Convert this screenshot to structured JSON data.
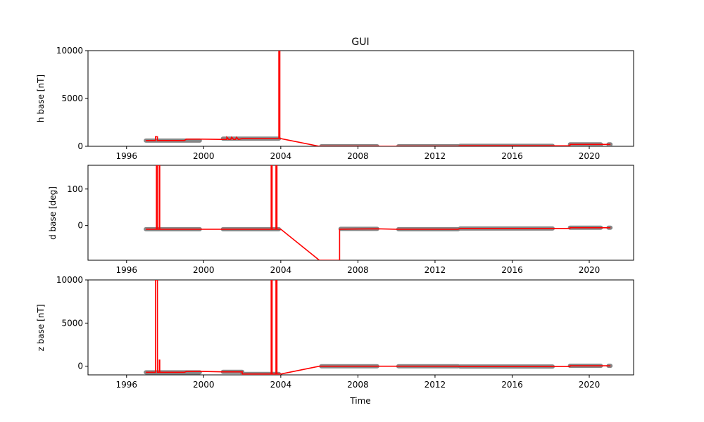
{
  "chart_data": {
    "type": "line",
    "title": "GUI",
    "xlabel": "Time",
    "x_ticks": [
      "1996",
      "2000",
      "2004",
      "2008",
      "2012",
      "2016",
      "2020"
    ],
    "colors": {
      "measurement_points": "#808080",
      "baseline_line": "#ff0000"
    },
    "grid": false,
    "legend": false,
    "panels": [
      {
        "ylabel": "h base [nT]",
        "ylim": [
          0,
          10000
        ],
        "y_ticks": [
          0,
          5000,
          10000
        ],
        "point_ranges": [
          [
            1997.0,
            1999.8,
            600
          ],
          [
            2001.0,
            2003.9,
            800
          ],
          [
            2006.1,
            2009.0,
            0
          ],
          [
            2010.1,
            2013.2,
            0
          ],
          [
            2013.3,
            2018.1,
            50
          ],
          [
            2019.0,
            2020.6,
            200
          ],
          [
            2021.0,
            2021.1,
            200
          ]
        ],
        "baseline": [
          [
            1997.0,
            600
          ],
          [
            1997.5,
            600
          ],
          [
            1997.5,
            1000
          ],
          [
            1997.6,
            1000
          ],
          [
            1997.6,
            600
          ],
          [
            1999.0,
            600
          ],
          [
            1999.1,
            750
          ],
          [
            1999.9,
            750
          ],
          [
            2000.9,
            720
          ],
          [
            2001.2,
            720
          ],
          [
            2001.2,
            950
          ],
          [
            2001.3,
            720
          ],
          [
            2001.4,
            720
          ],
          [
            2001.45,
            950
          ],
          [
            2001.55,
            720
          ],
          [
            2001.65,
            720
          ],
          [
            2001.7,
            950
          ],
          [
            2001.8,
            720
          ],
          [
            2002.0,
            800
          ],
          [
            2003.9,
            820
          ],
          [
            2003.9,
            10000
          ],
          [
            2003.95,
            10000
          ],
          [
            2003.95,
            800
          ],
          [
            2004.0,
            800
          ],
          [
            2006.0,
            0
          ],
          [
            2009.0,
            0
          ],
          [
            2010.0,
            0
          ],
          [
            2013.2,
            0
          ],
          [
            2013.3,
            50
          ],
          [
            2018.1,
            50
          ],
          [
            2019.0,
            50
          ],
          [
            2019.0,
            200
          ],
          [
            2020.6,
            200
          ],
          [
            2021.0,
            200
          ],
          [
            2021.1,
            200
          ]
        ]
      },
      {
        "ylabel": "d base [deg]",
        "ylim": [
          -95,
          165
        ],
        "y_ticks": [
          0,
          100
        ],
        "point_ranges": [
          [
            1997.0,
            1999.8,
            -10
          ],
          [
            2001.0,
            2003.9,
            -10
          ],
          [
            2007.1,
            2009.0,
            -9
          ],
          [
            2010.1,
            2013.2,
            -10
          ],
          [
            2013.3,
            2018.1,
            -8
          ],
          [
            2019.0,
            2020.6,
            -6
          ],
          [
            2021.0,
            2021.1,
            -6
          ]
        ],
        "baseline": [
          [
            1997.0,
            -10
          ],
          [
            1997.55,
            -10
          ],
          [
            1997.55,
            165
          ],
          [
            1997.6,
            165
          ],
          [
            1997.6,
            -10
          ],
          [
            1997.7,
            -10
          ],
          [
            1997.7,
            165
          ],
          [
            1997.72,
            165
          ],
          [
            1997.72,
            -10
          ],
          [
            1999.8,
            -10
          ],
          [
            2001.0,
            -10
          ],
          [
            2003.5,
            -10
          ],
          [
            2003.5,
            165
          ],
          [
            2003.55,
            165
          ],
          [
            2003.55,
            -10
          ],
          [
            2003.75,
            -10
          ],
          [
            2003.75,
            165
          ],
          [
            2003.8,
            165
          ],
          [
            2003.8,
            -10
          ],
          [
            2004.0,
            -10
          ],
          [
            2006.0,
            -95
          ],
          [
            2007.05,
            -95
          ],
          [
            2007.05,
            -10
          ],
          [
            2009.0,
            -9
          ],
          [
            2010.0,
            -10
          ],
          [
            2013.2,
            -10
          ],
          [
            2013.3,
            -8
          ],
          [
            2018.1,
            -8
          ],
          [
            2019.0,
            -8
          ],
          [
            2019.0,
            -6
          ],
          [
            2020.6,
            -6
          ],
          [
            2021.0,
            -6
          ],
          [
            2021.1,
            -6
          ]
        ]
      },
      {
        "ylabel": "z base [nT]",
        "ylim": [
          -1000,
          10000
        ],
        "y_ticks": [
          0,
          5000,
          10000
        ],
        "point_ranges": [
          [
            1997.0,
            1999.8,
            -700
          ],
          [
            2001.0,
            2002.0,
            -650
          ],
          [
            2002.0,
            2003.9,
            -900
          ],
          [
            2006.1,
            2009.0,
            0
          ],
          [
            2010.1,
            2013.2,
            0
          ],
          [
            2013.3,
            2018.1,
            -30
          ],
          [
            2019.0,
            2020.6,
            50
          ],
          [
            2021.0,
            2021.1,
            50
          ]
        ],
        "baseline": [
          [
            1997.0,
            -700
          ],
          [
            1997.5,
            -700
          ],
          [
            1997.5,
            10000
          ],
          [
            1997.6,
            10000
          ],
          [
            1997.6,
            -700
          ],
          [
            1997.7,
            -700
          ],
          [
            1997.7,
            700
          ],
          [
            1997.72,
            700
          ],
          [
            1997.72,
            -700
          ],
          [
            1999.0,
            -700
          ],
          [
            1999.1,
            -600
          ],
          [
            1999.9,
            -600
          ],
          [
            2001.0,
            -650
          ],
          [
            2002.0,
            -650
          ],
          [
            2002.0,
            -900
          ],
          [
            2003.5,
            -900
          ],
          [
            2003.5,
            10000
          ],
          [
            2003.55,
            10000
          ],
          [
            2003.55,
            -900
          ],
          [
            2003.75,
            -900
          ],
          [
            2003.75,
            10000
          ],
          [
            2003.8,
            10000
          ],
          [
            2003.8,
            -900
          ],
          [
            2004.0,
            -900
          ],
          [
            2006.0,
            0
          ],
          [
            2009.0,
            0
          ],
          [
            2010.0,
            0
          ],
          [
            2013.2,
            0
          ],
          [
            2013.3,
            -30
          ],
          [
            2018.1,
            -30
          ],
          [
            2019.0,
            -30
          ],
          [
            2019.0,
            50
          ],
          [
            2020.6,
            50
          ],
          [
            2021.0,
            50
          ],
          [
            2021.1,
            50
          ]
        ]
      }
    ]
  }
}
